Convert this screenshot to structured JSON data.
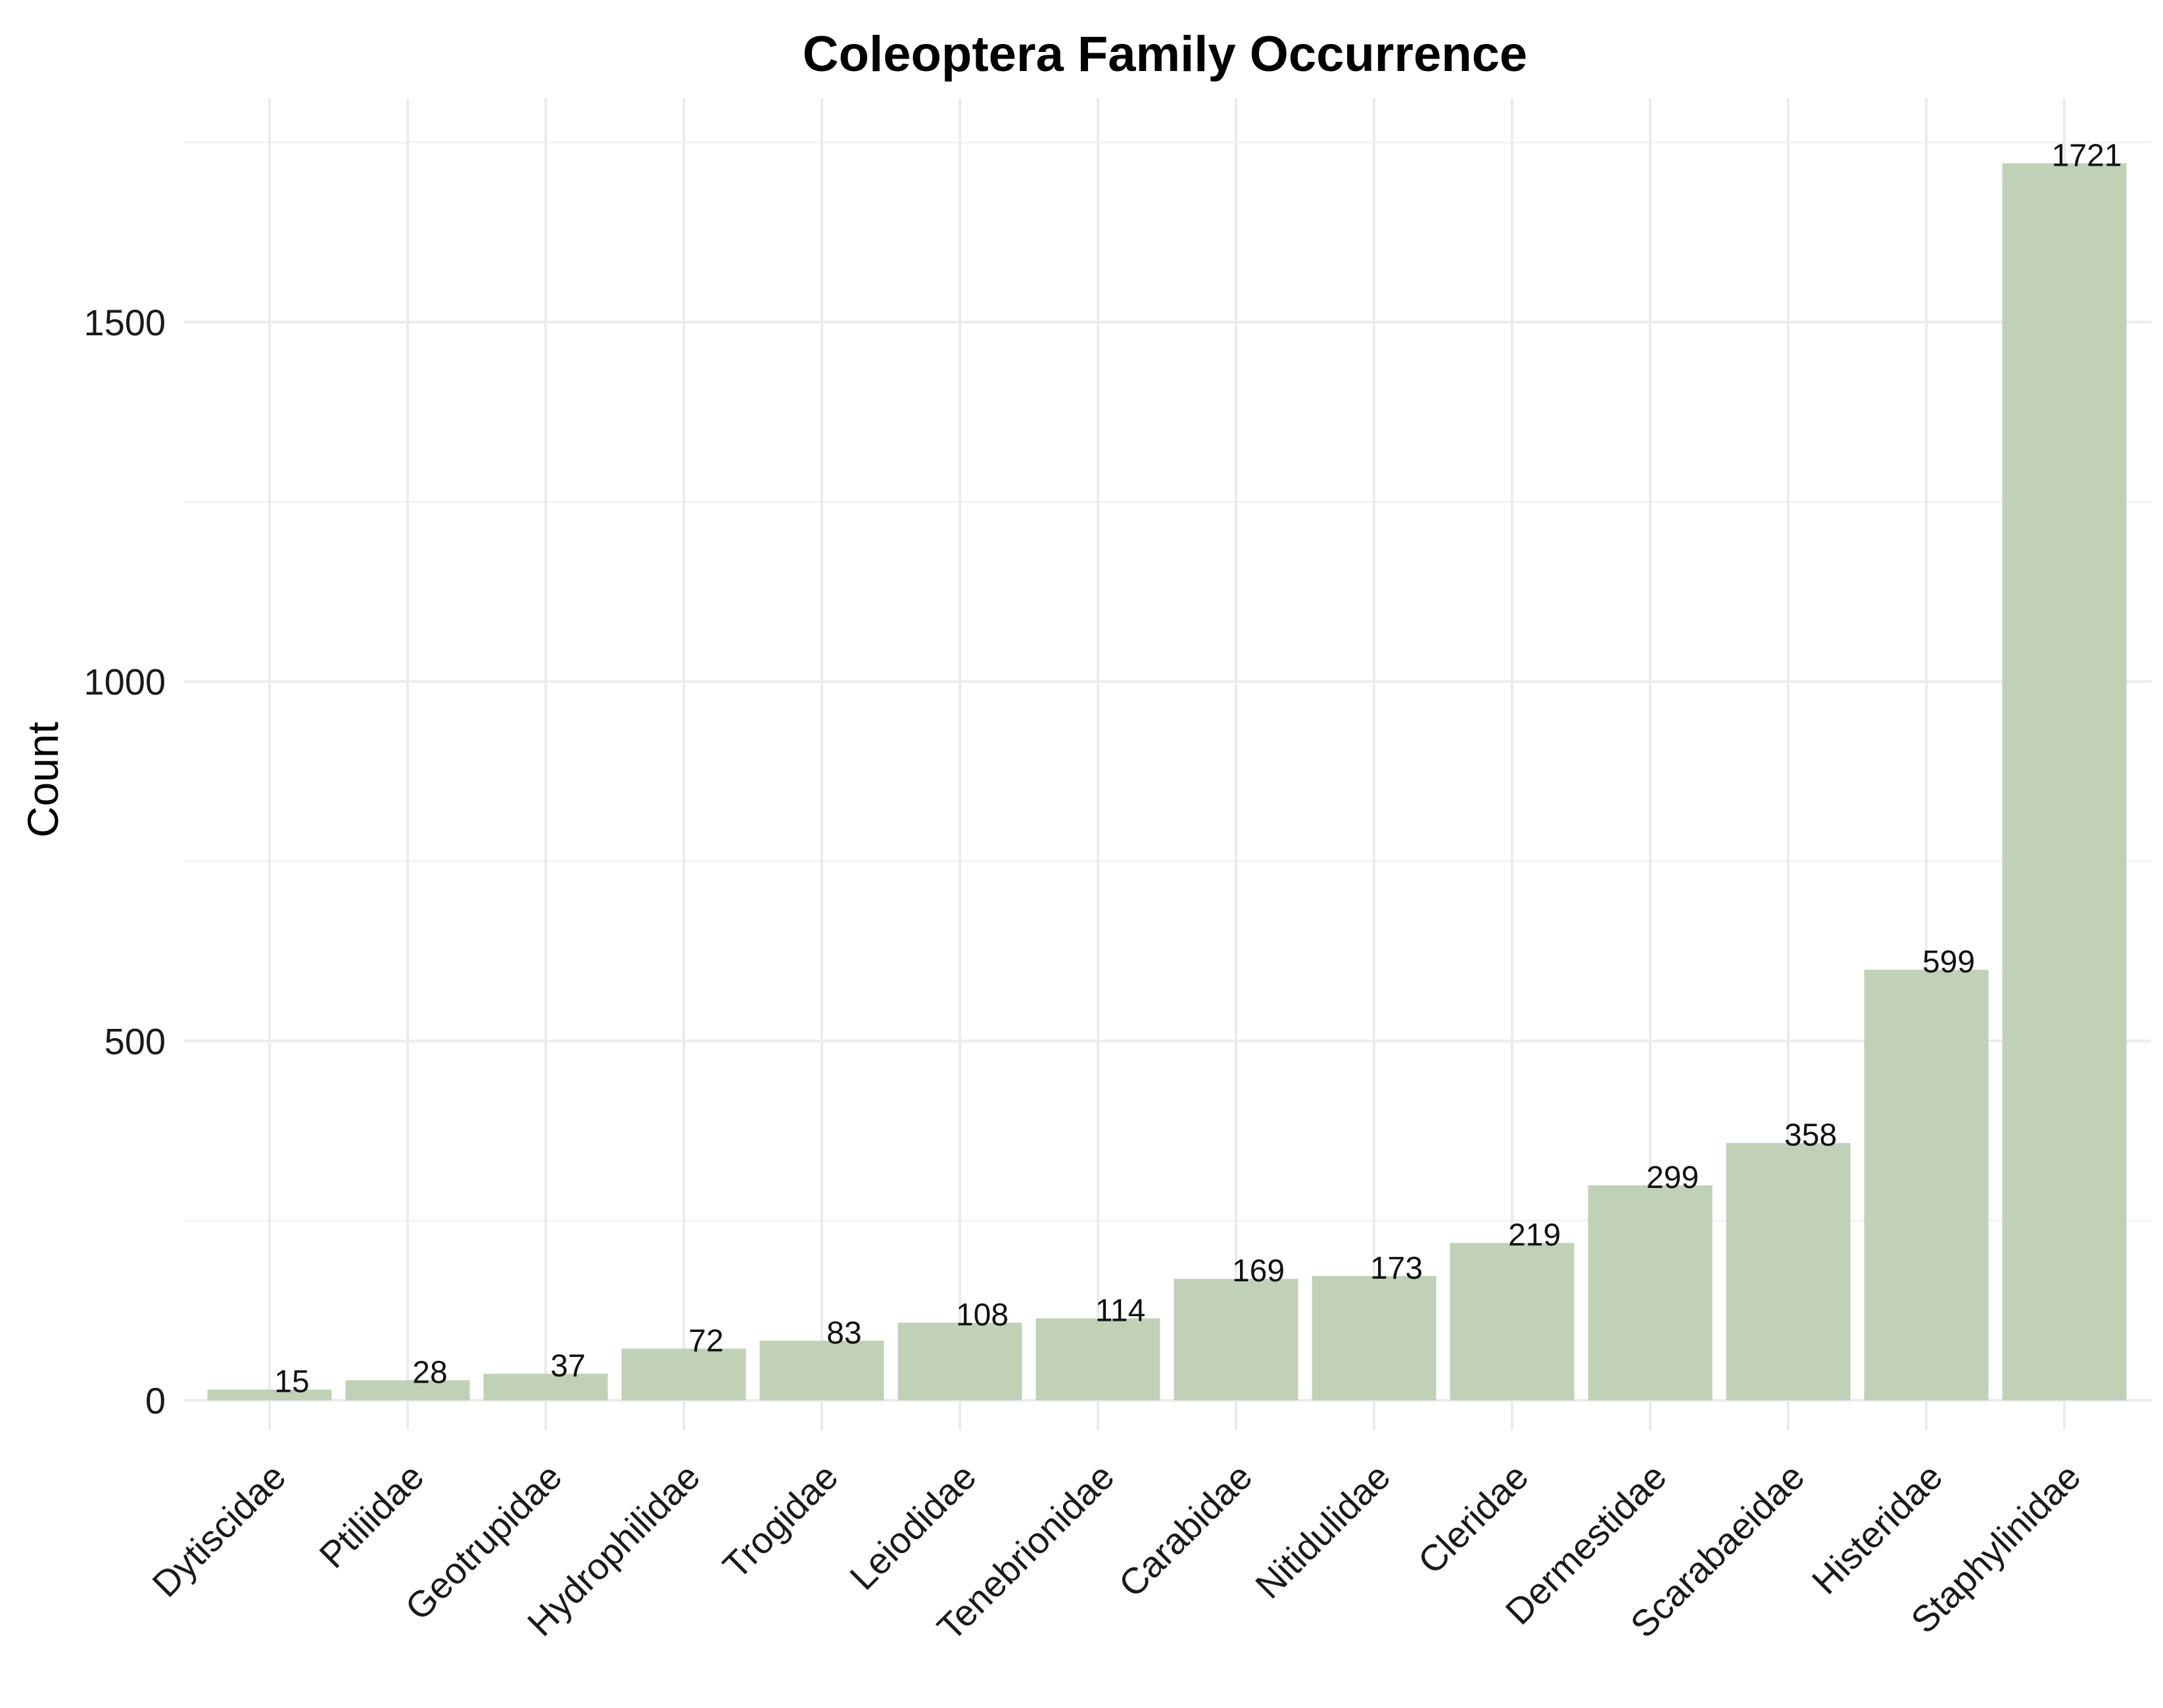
{
  "chart_data": {
    "type": "bar",
    "title": "Coleoptera Family Occurrence",
    "xlabel": "",
    "ylabel": "Count",
    "ylim": [
      0,
      1721
    ],
    "yticks": [
      0,
      500,
      1000,
      1500
    ],
    "grid": true,
    "legend": "none",
    "categories": [
      "Dytiscidae",
      "Ptiliidae",
      "Geotrupidae",
      "Hydrophilidae",
      "Trogidae",
      "Leiodidae",
      "Tenebrionidae",
      "Carabidae",
      "Nitidulidae",
      "Cleridae",
      "Dermestidae",
      "Scarabaeidae",
      "Histeridae",
      "Staphylinidae"
    ],
    "values": [
      15,
      28,
      37,
      72,
      83,
      108,
      114,
      169,
      173,
      219,
      299,
      358,
      599,
      1721
    ],
    "bar_color": "#c0d1b7"
  }
}
